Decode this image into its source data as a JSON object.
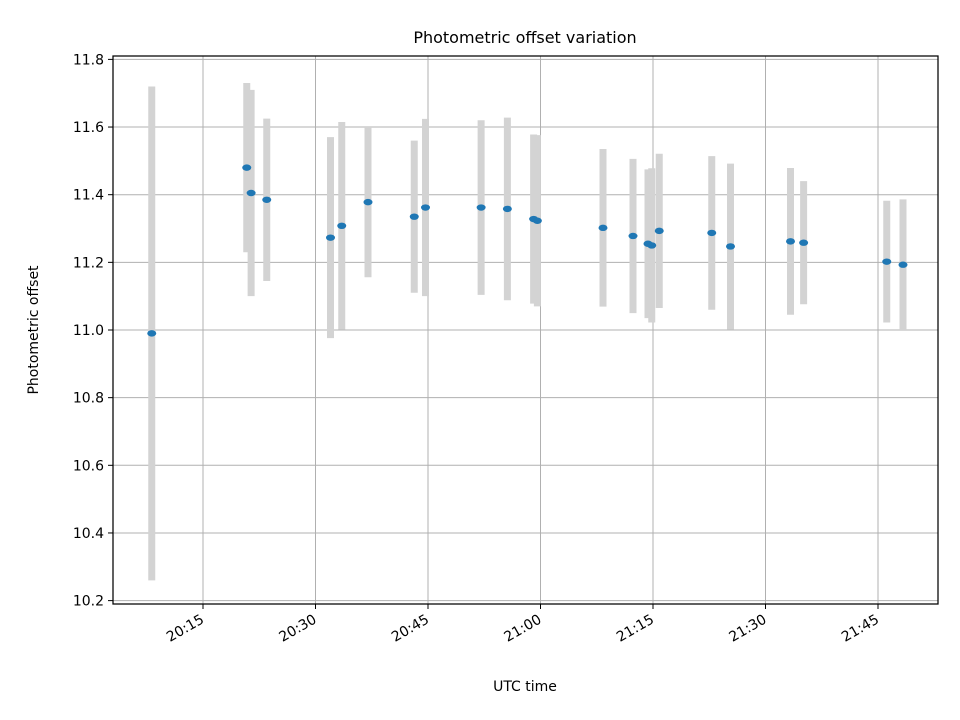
{
  "chart_data": {
    "type": "scatter",
    "title": "Photometric offset variation",
    "xlabel": "UTC time",
    "ylabel": "Photometric offset",
    "date": "",
    "xlim": [
      "20:03:00",
      "21:53:00"
    ],
    "ylim": [
      10.19,
      11.81
    ],
    "grid": true,
    "xticks": [
      "20:15",
      "20:30",
      "20:45",
      "21:00",
      "21:15",
      "21:30",
      "21:45"
    ],
    "yticks": [
      10.2,
      10.4,
      10.6,
      10.8,
      11.0,
      11.2,
      11.4,
      11.6,
      11.8
    ],
    "colors": {
      "point": "#1f77b4",
      "errorbar": "#d3d3d3",
      "grid": "#b0b0b0"
    },
    "points": [
      {
        "t": "20:08:10",
        "y": 10.99,
        "err": 0.73
      },
      {
        "t": "20:20:50",
        "y": 11.48,
        "err": 0.25
      },
      {
        "t": "20:21:25",
        "y": 11.405,
        "err": 0.305
      },
      {
        "t": "20:23:30",
        "y": 11.385,
        "err": 0.24
      },
      {
        "t": "20:32:00",
        "y": 11.273,
        "err": 0.297
      },
      {
        "t": "20:33:30",
        "y": 11.308,
        "err": 0.307
      },
      {
        "t": "20:37:00",
        "y": 11.378,
        "err": 0.222
      },
      {
        "t": "20:43:10",
        "y": 11.335,
        "err": 0.225
      },
      {
        "t": "20:44:40",
        "y": 11.362,
        "err": 0.262
      },
      {
        "t": "20:52:05",
        "y": 11.362,
        "err": 0.258
      },
      {
        "t": "20:55:35",
        "y": 11.358,
        "err": 0.27
      },
      {
        "t": "20:59:05",
        "y": 11.328,
        "err": 0.25
      },
      {
        "t": "20:59:35",
        "y": 11.323,
        "err": 0.253
      },
      {
        "t": "21:08:20",
        "y": 11.302,
        "err": 0.233
      },
      {
        "t": "21:12:20",
        "y": 11.278,
        "err": 0.228
      },
      {
        "t": "21:14:20",
        "y": 11.255,
        "err": 0.22
      },
      {
        "t": "21:14:50",
        "y": 11.25,
        "err": 0.228
      },
      {
        "t": "21:15:50",
        "y": 11.293,
        "err": 0.228
      },
      {
        "t": "21:22:50",
        "y": 11.287,
        "err": 0.227
      },
      {
        "t": "21:25:20",
        "y": 11.247,
        "err": 0.245
      },
      {
        "t": "21:33:20",
        "y": 11.262,
        "err": 0.217
      },
      {
        "t": "21:35:05",
        "y": 11.258,
        "err": 0.182
      },
      {
        "t": "21:46:10",
        "y": 11.202,
        "err": 0.18
      },
      {
        "t": "21:48:20",
        "y": 11.193,
        "err": 0.193
      }
    ]
  }
}
